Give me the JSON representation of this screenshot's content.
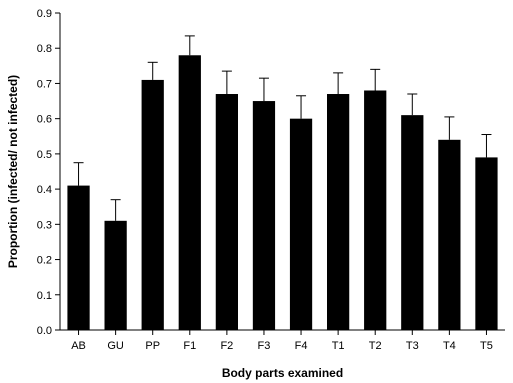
{
  "chart_data": {
    "type": "bar",
    "categories": [
      "AB",
      "GU",
      "PP",
      "F1",
      "F2",
      "F3",
      "F4",
      "T1",
      "T2",
      "T3",
      "T4",
      "T5"
    ],
    "values": [
      0.41,
      0.31,
      0.71,
      0.78,
      0.67,
      0.65,
      0.6,
      0.67,
      0.68,
      0.61,
      0.54,
      0.49
    ],
    "errors": [
      0.065,
      0.06,
      0.05,
      0.055,
      0.065,
      0.065,
      0.065,
      0.06,
      0.06,
      0.06,
      0.065,
      0.065
    ],
    "xlabel": "Body parts examined",
    "ylabel": "Proportion (infected/ not infected)",
    "ylim": [
      0,
      0.9
    ],
    "yticks": [
      "0.0",
      "0.1",
      "0.2",
      "0.3",
      "0.4",
      "0.5",
      "0.6",
      "0.7",
      "0.8",
      "0.9"
    ],
    "grid": false,
    "bar_color": "#000000"
  }
}
